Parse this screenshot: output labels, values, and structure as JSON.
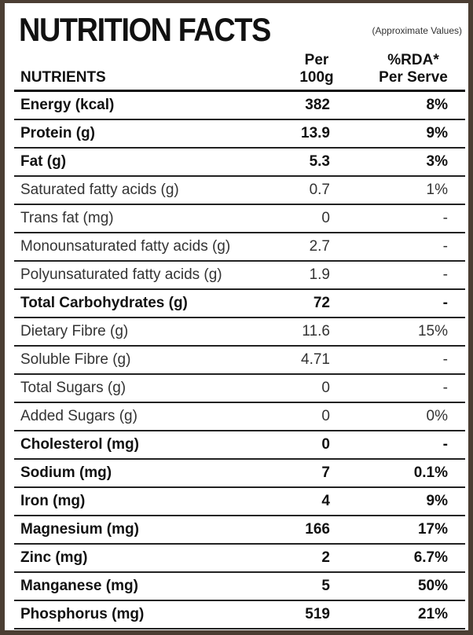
{
  "header": {
    "title": "NUTRITION FACTS",
    "note": "(Approximate Values)"
  },
  "table": {
    "columns": [
      [
        "NUTRIENTS"
      ],
      [
        "Per",
        "100g"
      ],
      [
        "%RDA*",
        "Per Serve"
      ]
    ],
    "rows": [
      {
        "nutrient": "Energy (kcal)",
        "per_100g": "382",
        "rda": "8%",
        "bold": true
      },
      {
        "nutrient": "Protein (g)",
        "per_100g": "13.9",
        "rda": "9%",
        "bold": true
      },
      {
        "nutrient": "Fat (g)",
        "per_100g": "5.3",
        "rda": "3%",
        "bold": true
      },
      {
        "nutrient": "Saturated fatty acids (g)",
        "per_100g": "0.7",
        "rda": "1%",
        "bold": false
      },
      {
        "nutrient": "Trans fat (mg)",
        "per_100g": "0",
        "rda": "-",
        "bold": false
      },
      {
        "nutrient": "Monounsaturated fatty acids (g)",
        "per_100g": "2.7",
        "rda": "-",
        "bold": false
      },
      {
        "nutrient": "Polyunsaturated fatty acids (g)",
        "per_100g": "1.9",
        "rda": "-",
        "bold": false
      },
      {
        "nutrient": "Total Carbohydrates (g)",
        "per_100g": "72",
        "rda": "-",
        "bold": true
      },
      {
        "nutrient": "Dietary Fibre (g)",
        "per_100g": "11.6",
        "rda": "15%",
        "bold": false
      },
      {
        "nutrient": "Soluble Fibre (g)",
        "per_100g": "4.71",
        "rda": "-",
        "bold": false
      },
      {
        "nutrient": "Total Sugars (g)",
        "per_100g": "0",
        "rda": "-",
        "bold": false
      },
      {
        "nutrient": "Added Sugars (g)",
        "per_100g": "0",
        "rda": "0%",
        "bold": false
      },
      {
        "nutrient": "Cholesterol (mg)",
        "per_100g": "0",
        "rda": "-",
        "bold": true
      },
      {
        "nutrient": "Sodium (mg)",
        "per_100g": "7",
        "rda": "0.1%",
        "bold": true
      },
      {
        "nutrient": "Iron (mg)",
        "per_100g": "4",
        "rda": "9%",
        "bold": true
      },
      {
        "nutrient": "Magnesium (mg)",
        "per_100g": "166",
        "rda": "17%",
        "bold": true
      },
      {
        "nutrient": "Zinc (mg)",
        "per_100g": "2",
        "rda": "6.7%",
        "bold": true
      },
      {
        "nutrient": "Manganese (mg)",
        "per_100g": "5",
        "rda": "50%",
        "bold": true
      },
      {
        "nutrient": "Phosphorus (mg)",
        "per_100g": "519",
        "rda": "21%",
        "bold": true
      }
    ]
  }
}
